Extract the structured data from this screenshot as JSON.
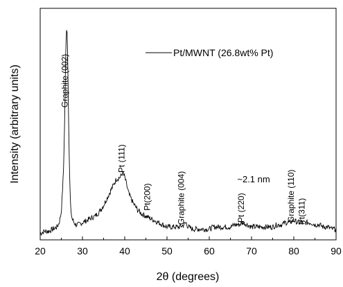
{
  "chart_data": {
    "type": "line",
    "title": "",
    "xlabel": "2θ (degrees)",
    "ylabel": "Intensity (arbitrary units)",
    "xlim": [
      20,
      90
    ],
    "ylim": [
      0,
      1
    ],
    "y_ticks_shown": false,
    "x_ticks": [
      20,
      30,
      40,
      50,
      60,
      70,
      80,
      90
    ],
    "grid": false,
    "legend": {
      "position": "top-right",
      "entries": [
        "Pt/MWNT (26.8wt% Pt)"
      ]
    },
    "series": [
      {
        "name": "Pt/MWNT (26.8wt% Pt)",
        "x": [
          20,
          21,
          22,
          23,
          24,
          24.5,
          25,
          25.5,
          25.8,
          26.0,
          26.2,
          26.4,
          26.6,
          26.8,
          27.0,
          27.2,
          27.5,
          28,
          28.5,
          29,
          30,
          31,
          32,
          33,
          34,
          35,
          36,
          37,
          38,
          39,
          39.5,
          40,
          40.5,
          41,
          41.5,
          42,
          43,
          44,
          45,
          46,
          47,
          48,
          49,
          50,
          51,
          52,
          53,
          54,
          54.5,
          55,
          56,
          57,
          58,
          59,
          60,
          61,
          62,
          63,
          64,
          65,
          66,
          67,
          68,
          69,
          70,
          71,
          72,
          73,
          74,
          75,
          76,
          77,
          78,
          79,
          80,
          81,
          82,
          83,
          84,
          85,
          86,
          87,
          88,
          89,
          90
        ],
        "y": [
          0.02,
          0.03,
          0.03,
          0.04,
          0.05,
          0.07,
          0.12,
          0.3,
          0.55,
          0.8,
          0.97,
          0.95,
          0.72,
          0.45,
          0.25,
          0.14,
          0.09,
          0.07,
          0.06,
          0.06,
          0.07,
          0.08,
          0.09,
          0.1,
          0.12,
          0.15,
          0.19,
          0.23,
          0.27,
          0.28,
          0.3,
          0.28,
          0.24,
          0.2,
          0.18,
          0.16,
          0.13,
          0.11,
          0.1,
          0.09,
          0.08,
          0.07,
          0.06,
          0.05,
          0.05,
          0.05,
          0.05,
          0.06,
          0.07,
          0.05,
          0.04,
          0.04,
          0.04,
          0.04,
          0.04,
          0.05,
          0.05,
          0.05,
          0.05,
          0.05,
          0.06,
          0.06,
          0.07,
          0.06,
          0.05,
          0.05,
          0.05,
          0.05,
          0.05,
          0.05,
          0.06,
          0.06,
          0.07,
          0.07,
          0.08,
          0.07,
          0.07,
          0.07,
          0.07,
          0.06,
          0.06,
          0.05,
          0.05,
          0.04,
          0.04
        ]
      }
    ],
    "annotations": [
      {
        "text": "Graphite (002)",
        "x": 26.5,
        "y": 0.6,
        "rotation": -90
      },
      {
        "text": "Pt (111)",
        "x": 39.9,
        "y": 0.3,
        "rotation": -90
      },
      {
        "text": "Pt(200)",
        "x": 46.0,
        "y": 0.125,
        "rotation": -90
      },
      {
        "text": "Graphite (004)",
        "x": 54.0,
        "y": 0.06,
        "rotation": -90
      },
      {
        "text": "~2.1 nm",
        "x": 70.5,
        "y": 0.255,
        "rotation": 0
      },
      {
        "text": "Pt (220)",
        "x": 68.2,
        "y": 0.07,
        "rotation": -90
      },
      {
        "text": "Graphite (110)",
        "x": 80.0,
        "y": 0.07,
        "rotation": -90
      },
      {
        "text": "Pt(311)",
        "x": 82.5,
        "y": 0.06,
        "rotation": -90
      }
    ]
  }
}
